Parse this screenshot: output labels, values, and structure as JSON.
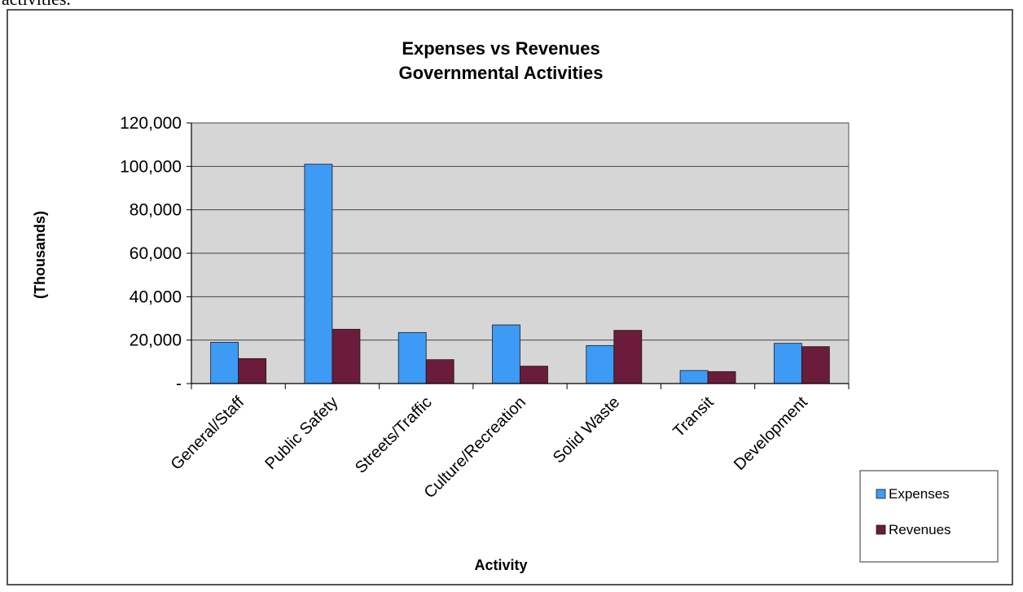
{
  "page": {
    "top_text": "activities."
  },
  "chart_data": {
    "type": "bar",
    "title": [
      "Expenses vs Revenues",
      "Governmental Activities"
    ],
    "xlabel": "Activity",
    "ylabel": "(Thousands)",
    "ylim": [
      0,
      120000
    ],
    "y_ticks": [
      {
        "value": 0,
        "label": "-"
      },
      {
        "value": 20000,
        "label": "20,000"
      },
      {
        "value": 40000,
        "label": "40,000"
      },
      {
        "value": 60000,
        "label": "60,000"
      },
      {
        "value": 80000,
        "label": "80,000"
      },
      {
        "value": 100000,
        "label": "100,000"
      },
      {
        "value": 120000,
        "label": "120,000"
      }
    ],
    "grid": true,
    "legend_position": "bottom-right",
    "categories": [
      "General/Staff",
      "Public Safety",
      "Streets/Traffic",
      "Culture/Recreation",
      "Solid Waste",
      "Transit",
      "Development"
    ],
    "series": [
      {
        "name": "Expenses",
        "color": "#3d9bf5",
        "values": [
          19000,
          101000,
          23500,
          27000,
          17500,
          6000,
          18500
        ]
      },
      {
        "name": "Revenues",
        "color": "#6b1c3a",
        "values": [
          11500,
          25000,
          11000,
          8000,
          24500,
          5500,
          17000
        ]
      }
    ],
    "colors": {
      "plot_background": "#d6d6d6",
      "gridline": "#444444"
    }
  }
}
